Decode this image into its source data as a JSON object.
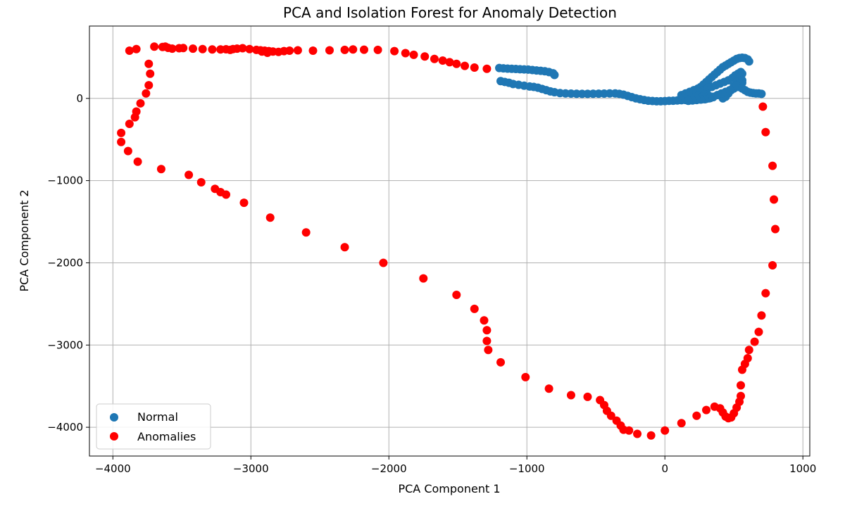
{
  "chart_data": {
    "type": "scatter",
    "title": "PCA and Isolation Forest for Anomaly Detection",
    "xlabel": "PCA Component 1",
    "ylabel": "PCA Component 2",
    "xlim": [
      -4170,
      1050
    ],
    "ylim": [
      -4350,
      880
    ],
    "xticks": [
      -4000,
      -3000,
      -2000,
      -1000,
      0,
      1000
    ],
    "yticks": [
      -4000,
      -3000,
      -2000,
      -1000,
      0
    ],
    "xtick_labels": [
      "−4000",
      "−3000",
      "−2000",
      "−1000",
      "0",
      "1000"
    ],
    "ytick_labels": [
      "−4000",
      "−3000",
      "−2000",
      "−1000",
      "0"
    ],
    "grid": true,
    "legend_position": "lower-left",
    "series": [
      {
        "name": "Normal",
        "color": "#1f77b4",
        "points": [
          [
            -1200,
            370
          ],
          [
            -1170,
            365
          ],
          [
            -1140,
            362
          ],
          [
            -1110,
            360
          ],
          [
            -1080,
            358
          ],
          [
            -1050,
            355
          ],
          [
            -1020,
            352
          ],
          [
            -990,
            350
          ],
          [
            -960,
            345
          ],
          [
            -930,
            340
          ],
          [
            -900,
            335
          ],
          [
            -870,
            330
          ],
          [
            -840,
            320
          ],
          [
            -810,
            305
          ],
          [
            -800,
            285
          ],
          [
            -1190,
            210
          ],
          [
            -1160,
            200
          ],
          [
            -1130,
            190
          ],
          [
            -1100,
            175
          ],
          [
            -1060,
            165
          ],
          [
            -1020,
            155
          ],
          [
            -980,
            145
          ],
          [
            -950,
            140
          ],
          [
            -920,
            130
          ],
          [
            -890,
            115
          ],
          [
            -860,
            100
          ],
          [
            -830,
            85
          ],
          [
            -800,
            75
          ],
          [
            -760,
            65
          ],
          [
            -720,
            60
          ],
          [
            -680,
            58
          ],
          [
            -640,
            56
          ],
          [
            -600,
            55
          ],
          [
            -560,
            55
          ],
          [
            -520,
            56
          ],
          [
            -480,
            57
          ],
          [
            -440,
            58
          ],
          [
            -400,
            60
          ],
          [
            -360,
            60
          ],
          [
            -330,
            55
          ],
          [
            -300,
            45
          ],
          [
            -270,
            30
          ],
          [
            -240,
            15
          ],
          [
            -210,
            0
          ],
          [
            -180,
            -10
          ],
          [
            -150,
            -20
          ],
          [
            -120,
            -28
          ],
          [
            -90,
            -32
          ],
          [
            -60,
            -35
          ],
          [
            -30,
            -35
          ],
          [
            0,
            -33
          ],
          [
            30,
            -30
          ],
          [
            60,
            -28
          ],
          [
            90,
            -25
          ],
          [
            120,
            -22
          ],
          [
            150,
            -20
          ],
          [
            180,
            -18
          ],
          [
            210,
            -15
          ],
          [
            240,
            -12
          ],
          [
            270,
            -10
          ],
          [
            300,
            -5
          ],
          [
            330,
            5
          ],
          [
            350,
            15
          ],
          [
            120,
            40
          ],
          [
            150,
            60
          ],
          [
            180,
            80
          ],
          [
            210,
            100
          ],
          [
            240,
            120
          ],
          [
            260,
            140
          ],
          [
            280,
            170
          ],
          [
            300,
            200
          ],
          [
            320,
            230
          ],
          [
            340,
            260
          ],
          [
            360,
            290
          ],
          [
            380,
            320
          ],
          [
            400,
            350
          ],
          [
            420,
            380
          ],
          [
            440,
            400
          ],
          [
            460,
            420
          ],
          [
            480,
            440
          ],
          [
            500,
            460
          ],
          [
            520,
            480
          ],
          [
            540,
            490
          ],
          [
            560,
            495
          ],
          [
            580,
            490
          ],
          [
            600,
            475
          ],
          [
            610,
            450
          ],
          [
            250,
            80
          ],
          [
            280,
            100
          ],
          [
            310,
            120
          ],
          [
            340,
            140
          ],
          [
            370,
            160
          ],
          [
            400,
            180
          ],
          [
            430,
            200
          ],
          [
            460,
            220
          ],
          [
            490,
            250
          ],
          [
            510,
            280
          ],
          [
            530,
            300
          ],
          [
            550,
            320
          ],
          [
            560,
            300
          ],
          [
            550,
            270
          ],
          [
            540,
            240
          ],
          [
            520,
            200
          ],
          [
            500,
            150
          ],
          [
            480,
            100
          ],
          [
            460,
            60
          ],
          [
            440,
            20
          ],
          [
            420,
            0
          ],
          [
            200,
            40
          ],
          [
            230,
            60
          ],
          [
            260,
            70
          ],
          [
            290,
            50
          ],
          [
            320,
            30
          ],
          [
            350,
            20
          ],
          [
            380,
            40
          ],
          [
            410,
            60
          ],
          [
            440,
            80
          ],
          [
            470,
            100
          ],
          [
            500,
            120
          ],
          [
            530,
            140
          ],
          [
            550,
            160
          ],
          [
            560,
            190
          ],
          [
            560,
            220
          ],
          [
            540,
            180
          ],
          [
            520,
            160
          ],
          [
            560,
            120
          ],
          [
            580,
            100
          ],
          [
            600,
            80
          ],
          [
            620,
            70
          ],
          [
            640,
            65
          ],
          [
            660,
            60
          ],
          [
            680,
            60
          ],
          [
            700,
            55
          ],
          [
            240,
            30
          ],
          [
            270,
            20
          ],
          [
            300,
            10
          ],
          [
            320,
            0
          ],
          [
            290,
            -10
          ],
          [
            260,
            -15
          ],
          [
            230,
            -20
          ],
          [
            200,
            -25
          ],
          [
            170,
            -30
          ]
        ]
      },
      {
        "name": "Anomalies",
        "color": "#ff0000",
        "points": [
          [
            -3880,
            580
          ],
          [
            -3830,
            600
          ],
          [
            -3700,
            630
          ],
          [
            -3640,
            625
          ],
          [
            -3600,
            615
          ],
          [
            -3570,
            605
          ],
          [
            -3520,
            610
          ],
          [
            -3490,
            612
          ],
          [
            -3420,
            605
          ],
          [
            -3350,
            600
          ],
          [
            -3280,
            595
          ],
          [
            -3220,
            595
          ],
          [
            -3180,
            598
          ],
          [
            -3130,
            600
          ],
          [
            -3100,
            605
          ],
          [
            -3060,
            610
          ],
          [
            -3010,
            600
          ],
          [
            -2960,
            590
          ],
          [
            -2930,
            585
          ],
          [
            -2900,
            580
          ],
          [
            -2870,
            575
          ],
          [
            -2840,
            570
          ],
          [
            -2800,
            565
          ],
          [
            -2760,
            575
          ],
          [
            -2720,
            580
          ],
          [
            -2660,
            585
          ],
          [
            -2550,
            580
          ],
          [
            -2430,
            585
          ],
          [
            -2320,
            590
          ],
          [
            -2260,
            595
          ],
          [
            -2180,
            592
          ],
          [
            -2080,
            590
          ],
          [
            -1960,
            575
          ],
          [
            -1880,
            550
          ],
          [
            -1820,
            530
          ],
          [
            -1740,
            510
          ],
          [
            -1670,
            480
          ],
          [
            -1610,
            460
          ],
          [
            -1560,
            440
          ],
          [
            -1510,
            420
          ],
          [
            -1450,
            395
          ],
          [
            -1380,
            375
          ],
          [
            -1290,
            360
          ],
          [
            -2880,
            555
          ],
          [
            -2920,
            570
          ],
          [
            -3150,
            590
          ],
          [
            -3620,
            630
          ],
          [
            -3740,
            420
          ],
          [
            -3730,
            300
          ],
          [
            -3740,
            160
          ],
          [
            -3760,
            60
          ],
          [
            -3800,
            -60
          ],
          [
            -3830,
            -160
          ],
          [
            -3840,
            -230
          ],
          [
            -3880,
            -310
          ],
          [
            -3940,
            -420
          ],
          [
            -3940,
            -530
          ],
          [
            -3890,
            -640
          ],
          [
            -3820,
            -770
          ],
          [
            -3650,
            -860
          ],
          [
            -3450,
            -930
          ],
          [
            -3360,
            -1020
          ],
          [
            -3260,
            -1100
          ],
          [
            -3220,
            -1140
          ],
          [
            -3180,
            -1170
          ],
          [
            -3050,
            -1270
          ],
          [
            -2860,
            -1450
          ],
          [
            -2600,
            -1630
          ],
          [
            -2320,
            -1810
          ],
          [
            -2040,
            -2000
          ],
          [
            -1750,
            -2190
          ],
          [
            -1510,
            -2390
          ],
          [
            -1380,
            -2560
          ],
          [
            -1310,
            -2700
          ],
          [
            -1290,
            -2820
          ],
          [
            -1290,
            -2950
          ],
          [
            -1280,
            -3060
          ],
          [
            -1190,
            -3210
          ],
          [
            -1010,
            -3390
          ],
          [
            -840,
            -3530
          ],
          [
            -680,
            -3610
          ],
          [
            -560,
            -3630
          ],
          [
            -470,
            -3670
          ],
          [
            -440,
            -3730
          ],
          [
            -420,
            -3800
          ],
          [
            -390,
            -3860
          ],
          [
            -350,
            -3920
          ],
          [
            -320,
            -3980
          ],
          [
            -300,
            -4030
          ],
          [
            -260,
            -4040
          ],
          [
            -200,
            -4080
          ],
          [
            -100,
            -4100
          ],
          [
            0,
            -4040
          ],
          [
            120,
            -3950
          ],
          [
            230,
            -3860
          ],
          [
            300,
            -3790
          ],
          [
            360,
            -3750
          ],
          [
            400,
            -3770
          ],
          [
            420,
            -3820
          ],
          [
            440,
            -3870
          ],
          [
            460,
            -3890
          ],
          [
            480,
            -3880
          ],
          [
            500,
            -3830
          ],
          [
            520,
            -3760
          ],
          [
            540,
            -3690
          ],
          [
            550,
            -3620
          ],
          [
            550,
            -3490
          ],
          [
            560,
            -3300
          ],
          [
            580,
            -3230
          ],
          [
            600,
            -3160
          ],
          [
            610,
            -3060
          ],
          [
            650,
            -2960
          ],
          [
            680,
            -2840
          ],
          [
            700,
            -2640
          ],
          [
            730,
            -2370
          ],
          [
            780,
            -2030
          ],
          [
            800,
            -1590
          ],
          [
            790,
            -1230
          ],
          [
            780,
            -820
          ],
          [
            730,
            -410
          ],
          [
            710,
            -100
          ]
        ]
      }
    ]
  }
}
